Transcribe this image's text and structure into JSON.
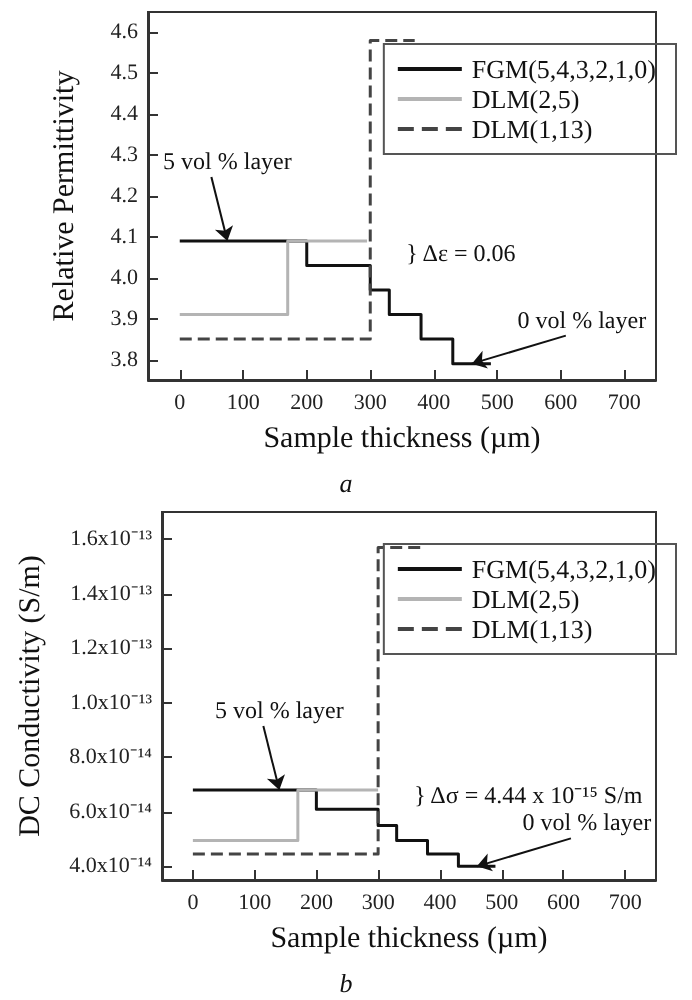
{
  "chart_data": [
    {
      "type": "step",
      "xlabel": "Sample thickness (µm)",
      "ylabel": "Relative Permittivity",
      "xlim": [
        -50,
        750
      ],
      "xticks": [
        0,
        100,
        200,
        300,
        400,
        500,
        600,
        700
      ],
      "ylim": [
        3.75,
        4.65
      ],
      "yticks": [
        {
          "value": 3.8,
          "label": "3.8"
        },
        {
          "value": 3.9,
          "label": "3.9"
        },
        {
          "value": 4.0,
          "label": "4.0"
        },
        {
          "value": 4.1,
          "label": "4.1"
        },
        {
          "value": 4.2,
          "label": "4.2"
        },
        {
          "value": 4.3,
          "label": "4.3"
        },
        {
          "value": 4.4,
          "label": "4.4"
        },
        {
          "value": 4.5,
          "label": "4.5"
        },
        {
          "value": 4.6,
          "label": "4.6"
        }
      ],
      "series": [
        {
          "name": "FGM(5,4,3,2,1,0)",
          "color": "#111111",
          "line_style": "solid",
          "x": [
            0,
            200,
            300,
            330,
            380,
            430,
            490
          ],
          "values": [
            4.09,
            4.03,
            3.97,
            3.91,
            3.85,
            3.79,
            3.79
          ]
        },
        {
          "name": "DLM(2,5)",
          "color": "#b4b4b4",
          "line_style": "solid",
          "x": [
            0,
            170,
            295
          ],
          "values": [
            3.91,
            4.09,
            4.09
          ]
        },
        {
          "name": "DLM(1,13)",
          "color": "#444444",
          "line_style": "dashed",
          "x": [
            0,
            300,
            370
          ],
          "values": [
            3.85,
            4.58,
            4.58
          ]
        }
      ],
      "legend": "top right",
      "grid": false,
      "marker": "none",
      "annotations": [
        {
          "text": "5 vol % layer",
          "x": 75,
          "y": 4.09
        },
        {
          "text": "} Δε = 0.06",
          "x": 300,
          "y": 4.06
        },
        {
          "text": "0 vol % layer",
          "x": 460,
          "y": 3.79
        },
        "a"
      ]
    },
    {
      "type": "step",
      "xlabel": "Sample thickness (µm)",
      "ylabel": "DC Conductivity (S/m)",
      "xlim": [
        -50,
        750
      ],
      "xticks": [
        0,
        100,
        200,
        300,
        400,
        500,
        600,
        700
      ],
      "ylim": [
        3.5e-14,
        1.7e-13
      ],
      "yticks": [
        {
          "value": 4e-14,
          "label": "4.0x10⁻¹⁴"
        },
        {
          "value": 6e-14,
          "label": "6.0x10⁻¹⁴"
        },
        {
          "value": 8e-14,
          "label": "8.0x10⁻¹⁴"
        },
        {
          "value": 1e-13,
          "label": "1.0x10⁻¹³"
        },
        {
          "value": 1.2e-13,
          "label": "1.2x10⁻¹³"
        },
        {
          "value": 1.4e-13,
          "label": "1.4x10⁻¹³"
        },
        {
          "value": 1.6e-13,
          "label": "1.6x10⁻¹³"
        }
      ],
      "series": [
        {
          "name": "FGM(5,4,3,2,1,0)",
          "color": "#111111",
          "line_style": "solid",
          "x": [
            0,
            200,
            300,
            330,
            380,
            430,
            490
          ],
          "values": [
            6.8e-14,
            6.1e-14,
            5.5e-14,
            4.95e-14,
            4.45e-14,
            4e-14,
            4e-14
          ]
        },
        {
          "name": "DLM(2,5)",
          "color": "#b4b4b4",
          "line_style": "solid",
          "x": [
            0,
            170,
            300
          ],
          "values": [
            4.95e-14,
            6.8e-14,
            6.8e-14
          ]
        },
        {
          "name": "DLM(1,13)",
          "color": "#444444",
          "line_style": "dashed",
          "x": [
            0,
            300,
            370
          ],
          "values": [
            4.45e-14,
            1.57e-13,
            1.57e-13
          ]
        }
      ],
      "legend": "top right",
      "grid": false,
      "marker": "none",
      "annotations": [
        {
          "text": "5 vol % layer",
          "x": 140,
          "y": 6.8e-14
        },
        {
          "text": "} Δσ = 4.44 x 10⁻¹⁵ S/m",
          "x": 300,
          "y": 6.6e-14
        },
        {
          "text": "0 vol % layer",
          "x": 460,
          "y": 4e-14
        },
        "b"
      ]
    }
  ]
}
